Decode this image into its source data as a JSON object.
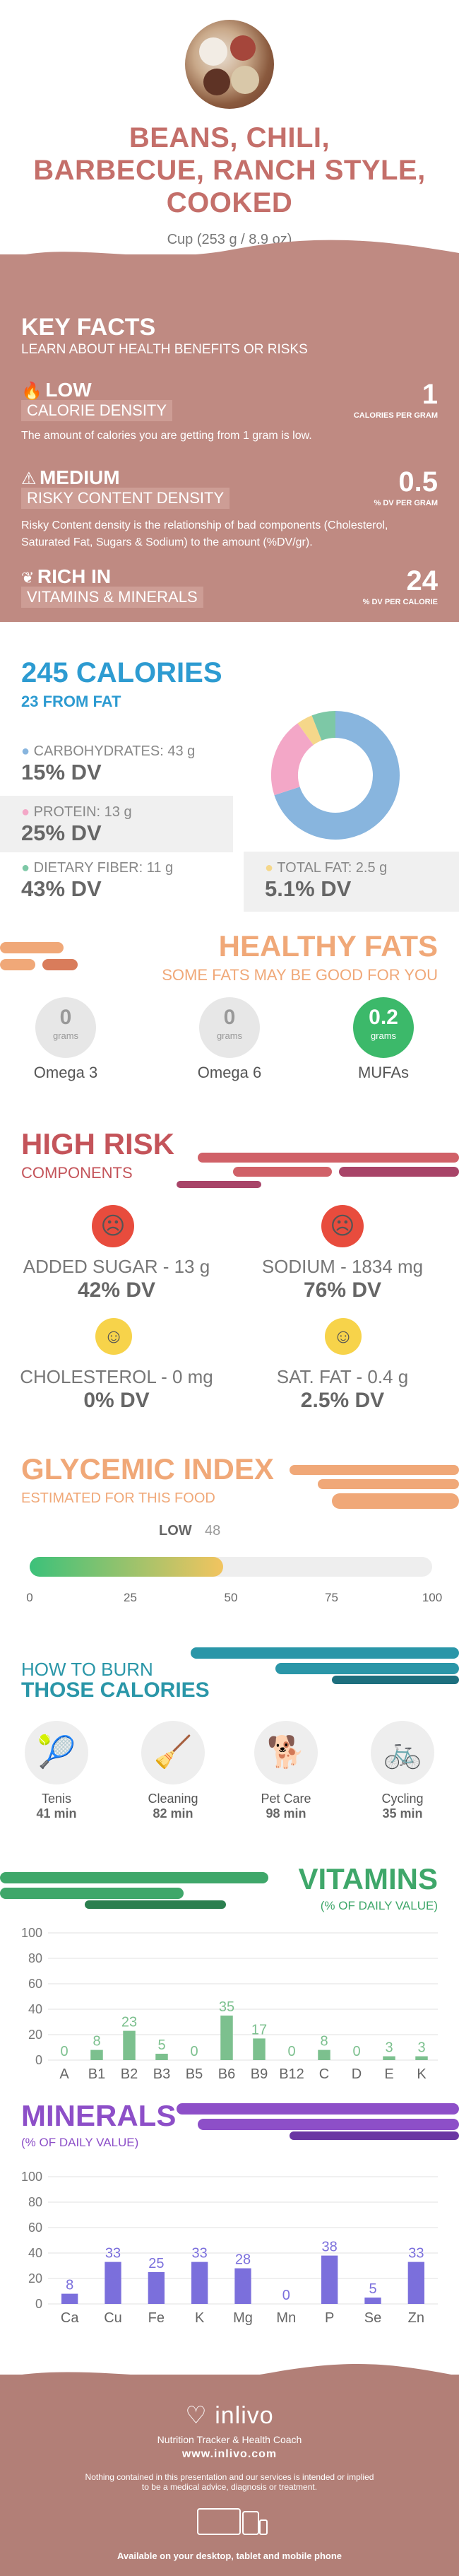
{
  "header": {
    "title": [
      "BEANS, CHILI,",
      "BARBECUE, RANCH STYLE,",
      "COOKED"
    ],
    "serving": "Cup (253 g / 8.9 oz)"
  },
  "key_facts": {
    "heading": "KEY FACTS",
    "subheading": "LEARN ABOUT HEALTH BENEFITS OR RISKS",
    "low": {
      "level": "LOW",
      "label": "CALORIE DENSITY",
      "value": "1",
      "unit": "CALORIES PER GRAM",
      "desc": "The amount of calories you are getting from 1 gram is low."
    },
    "medium": {
      "level": "MEDIUM",
      "label": "RISKY CONTENT DENSITY",
      "value": "0.5",
      "unit": "% DV PER GRAM",
      "desc": "Risky Content density is the relationship of bad components (Cholesterol, Saturated Fat, Sugars & Sodium) to the amount (%DV/gr)."
    },
    "rich": {
      "level": "RICH IN",
      "label": "VITAMINS & MINERALS",
      "value": "24",
      "unit": "% DV PER CALORIE"
    }
  },
  "calories": {
    "heading": "245 CALORIES",
    "from_fat": "23 FROM FAT",
    "carbs": {
      "label": "CARBOHYDRATES: 43 g",
      "dv": "15% DV"
    },
    "protein": {
      "label": "PROTEIN: 13 g",
      "dv": "25% DV"
    },
    "fiber": {
      "label": "DIETARY FIBER: 11 g",
      "dv": "43% DV"
    },
    "fat": {
      "label": "TOTAL FAT: 2.5 g",
      "dv": "5.1% DV"
    },
    "pie": [
      {
        "name": "carbs",
        "value": 70,
        "color": "#88b5de"
      },
      {
        "name": "protein",
        "value": 20,
        "color": "#f3a7c7"
      },
      {
        "name": "fat",
        "value": 4,
        "color": "#f5d78a"
      },
      {
        "name": "fiber",
        "value": 6,
        "color": "#7dc8a6"
      }
    ]
  },
  "healthy_fats": {
    "heading": "HEALTHY FATS",
    "sub": "SOME FATS MAY BE GOOD FOR YOU",
    "items": [
      {
        "value": "0",
        "unit": "grams",
        "name": "Omega 3"
      },
      {
        "value": "0",
        "unit": "grams",
        "name": "Omega 6"
      },
      {
        "value": "0.2",
        "unit": "grams",
        "name": "MUFAs"
      }
    ]
  },
  "high_risk": {
    "heading": "HIGH RISK",
    "sub": "COMPONENTS",
    "items": [
      {
        "label": "ADDED SUGAR - 13 g",
        "dv": "42% DV"
      },
      {
        "label": "SODIUM - 1834 mg",
        "dv": "76% DV"
      },
      {
        "label": "CHOLESTEROL - 0 mg",
        "dv": "0% DV"
      },
      {
        "label": "SAT. FAT - 0.4 g",
        "dv": "2.5% DV"
      }
    ]
  },
  "glycemic": {
    "heading": "GLYCEMIC INDEX",
    "sub": "ESTIMATED FOR THIS FOOD",
    "level": "LOW",
    "value": 48,
    "ticks": [
      "0",
      "25",
      "50",
      "75",
      "100"
    ]
  },
  "burn": {
    "heading1": "HOW TO BURN",
    "heading2": "THOSE CALORIES",
    "items": [
      {
        "name": "Tenis",
        "time": "41 min"
      },
      {
        "name": "Cleaning",
        "time": "82 min"
      },
      {
        "name": "Pet Care",
        "time": "98 min"
      },
      {
        "name": "Cycling",
        "time": "35 min"
      }
    ]
  },
  "vitamins": {
    "heading": "VITAMINS",
    "sub": "(% OF DAILY VALUE)"
  },
  "minerals": {
    "heading": "MINERALS",
    "sub": "(% OF DAILY VALUE)"
  },
  "chart_data": [
    {
      "type": "bar",
      "title": "VITAMINS",
      "categories": [
        "A",
        "B1",
        "B2",
        "B3",
        "B5",
        "B6",
        "B9",
        "B12",
        "C",
        "D",
        "E",
        "K"
      ],
      "values": [
        0,
        8,
        23,
        5,
        0,
        35,
        17,
        0,
        8,
        0,
        3,
        3
      ],
      "ylim": [
        0,
        100
      ],
      "yticks": [
        0,
        20,
        40,
        60,
        80,
        100
      ],
      "color": "#7cc08e"
    },
    {
      "type": "bar",
      "title": "MINERALS",
      "categories": [
        "Ca",
        "Cu",
        "Fe",
        "K",
        "Mg",
        "Mn",
        "P",
        "Se",
        "Zn"
      ],
      "values": [
        8,
        33,
        25,
        33,
        28,
        0,
        38,
        5,
        33
      ],
      "ylim": [
        0,
        100
      ],
      "yticks": [
        0,
        20,
        40,
        60,
        80,
        100
      ],
      "color": "#7b6fdc"
    }
  ],
  "footer": {
    "brand": "inlivo",
    "tagline": "Nutrition Tracker & Health Coach",
    "url": "www.inlivo.com",
    "disclaimer1": "Nothing contained in this presentation and our services is intended or implied",
    "disclaimer2": "to be a medical advice, diagnosis or treatment.",
    "available": "Available on your desktop, tablet and mobile phone"
  }
}
